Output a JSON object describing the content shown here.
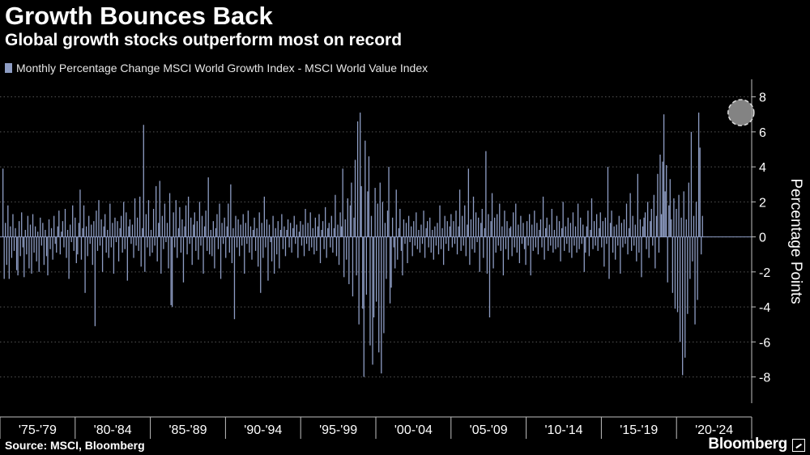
{
  "colors": {
    "background": "#000000",
    "bar": "#8e9dc4",
    "grid": "#555555",
    "axis": "#bfbfbf",
    "highlight": "#dddddd"
  },
  "chart_data": {
    "type": "bar",
    "title": "Growth Bounces Back",
    "subtitle": "Global growth stocks outperform most on record",
    "legend": "Monthly Percentage Change MSCI World Growth Index - MSCI World Value  Index",
    "ylabel": "Percentage Points",
    "xlabel": "",
    "ylim": [
      -9.5,
      9
    ],
    "yticks": [
      8,
      6,
      4,
      2,
      0,
      -2,
      -4,
      -6,
      -8
    ],
    "start_year": 1975,
    "xtick_labels": [
      "'75-'79",
      "'80-'84",
      "'85-'89",
      "'90-'94",
      "'95-'99",
      "'00-'04",
      "'05-'09",
      "'10-'14",
      "'15-'19",
      "'20-'24"
    ],
    "highlight": {
      "year": 2024,
      "month": 6,
      "value": 7.1
    },
    "series": [
      {
        "name": "Monthly Percentage Change MSCI World Growth Index - MSCI World Value  Index",
        "values": [
          3.9,
          -2.4,
          0.8,
          -1.6,
          1.8,
          -2.4,
          0.6,
          -1.2,
          1.3,
          -0.8,
          0.5,
          -1.9,
          -2.2,
          0.9,
          -1.1,
          1.4,
          -0.6,
          -2.3,
          0.4,
          -1.0,
          1.2,
          -1.8,
          0.7,
          -2.1,
          1.3,
          -0.9,
          0.6,
          -1.4,
          0.3,
          -2.0,
          1.1,
          -0.5,
          0.8,
          -1.6,
          0.4,
          -1.1,
          -2.2,
          1.0,
          -0.7,
          0.5,
          -1.3,
          1.2,
          -0.4,
          -0.9,
          0.6,
          1.5,
          -1.0,
          0.3,
          0.9,
          -0.6,
          1.6,
          -1.2,
          0.4,
          -2.4,
          0.7,
          -0.3,
          1.8,
          -0.8,
          1.1,
          -1.5,
          -1.0,
          0.8,
          2.7,
          -1.3,
          0.5,
          1.8,
          -3.2,
          0.6,
          -1.1,
          1.2,
          -0.4,
          0.7,
          -1.6,
          0.9,
          -5.1,
          1.5,
          -0.8,
          2.1,
          -0.5,
          1.0,
          -2.0,
          0.6,
          1.3,
          -0.9,
          0.4,
          -1.2,
          1.9,
          -0.6,
          0.8,
          -2.1,
          1.1,
          -0.3,
          0.9,
          -1.4,
          0.5,
          1.2,
          -0.9,
          2.0,
          -0.7,
          1.4,
          -2.5,
          0.6,
          1.0,
          -0.4,
          0.7,
          -1.2,
          2.2,
          -0.5,
          1.1,
          -0.8,
          2.3,
          -1.7,
          0.5,
          6.4,
          -2.0,
          1.3,
          -0.6,
          2.1,
          -1.1,
          0.4,
          -0.9,
          1.6,
          -0.5,
          2.9,
          -1.4,
          0.8,
          3.2,
          -2.1,
          1.2,
          -0.7,
          1.9,
          -0.3,
          0.8,
          -1.8,
          2.5,
          -3.9,
          -4.0,
          1.4,
          -0.6,
          2.1,
          -1.2,
          0.5,
          1.7,
          -0.9,
          1.0,
          -2.6,
          0.6,
          1.8,
          -1.0,
          2.3,
          -0.4,
          1.1,
          -1.6,
          0.7,
          1.4,
          -0.8,
          0.9,
          -1.3,
          2.0,
          -0.5,
          1.2,
          -2.1,
          0.6,
          1.5,
          -0.8,
          3.4,
          -1.0,
          0.4,
          -1.1,
          0.9,
          -1.8,
          0.5,
          1.3,
          -0.7,
          1.9,
          -2.4,
          0.8,
          -0.4,
          1.1,
          -1.2,
          0.6,
          1.9,
          -0.9,
          3.0,
          -1.5,
          0.5,
          -4.7,
          1.2,
          -0.6,
          1.0,
          -1.1,
          0.7,
          -0.5,
          1.3,
          -2.1,
          0.8,
          -0.4,
          1.5,
          -0.9,
          0.6,
          -1.3,
          0.4,
          1.1,
          -0.8,
          0.5,
          -1.7,
          1.4,
          -3.2,
          0.8,
          -1.2,
          2.3,
          -0.6,
          1.0,
          -2.5,
          0.7,
          -0.3,
          -1.4,
          1.2,
          -2.1,
          0.5,
          -1.0,
          0.9,
          -1.8,
          0.4,
          1.3,
          -0.7,
          0.6,
          -1.1,
          0.4,
          1.0,
          -0.6,
          0.8,
          -0.9,
          0.5,
          1.2,
          -0.4,
          0.7,
          -1.2,
          0.3,
          0.9,
          -0.5,
          0.7,
          -1.1,
          1.6,
          -0.4,
          0.8,
          -0.8,
          1.4,
          -0.6,
          0.5,
          -1.0,
          1.1,
          -0.8,
          0.6,
          1.3,
          -1.5,
          0.4,
          0.9,
          -0.7,
          1.7,
          -1.2,
          0.5,
          0.8,
          -0.6,
          1.2,
          -0.9,
          0.5,
          2.4,
          -1.1,
          0.7,
          -1.6,
          1.4,
          0.6,
          3.9,
          -2.3,
          1.0,
          -1.3,
          2.2,
          -2.7,
          1.8,
          3.1,
          -3.4,
          1.1,
          4.4,
          -2.2,
          6.6,
          -5.0,
          7.1,
          2.9,
          -4.1,
          -8.0,
          5.5,
          -3.3,
          2.6,
          4.6,
          -6.2,
          1.2,
          -7.3,
          -4.6,
          2.8,
          -3.7,
          1.9,
          -6.6,
          3.1,
          -7.8,
          2.0,
          -5.5,
          0.8,
          -2.4,
          1.5,
          4.0,
          -3.8,
          -2.9,
          1.1,
          -0.6,
          -1.8,
          2.7,
          -1.3,
          0.5,
          1.6,
          -0.8,
          -2.2,
          1.0,
          -0.4,
          0.8,
          -1.5,
          1.2,
          -0.3,
          0.6,
          -1.1,
          0.9,
          -0.5,
          1.4,
          -0.7,
          0.4,
          -0.9,
          0.7,
          -0.4,
          1.5,
          -1.2,
          0.5,
          0.9,
          -0.6,
          1.1,
          -0.9,
          0.4,
          -1.3,
          0.6,
          -0.5,
          0.8,
          -1.0,
          1.8,
          -0.7,
          0.5,
          -1.6,
          1.2,
          -0.4,
          0.9,
          -0.8,
          0.6,
          1.3,
          -0.6,
          0.9,
          -0.4,
          1.5,
          -1.0,
          0.6,
          2.7,
          -0.8,
          1.2,
          -0.5,
          1.8,
          -1.1,
          0.7,
          3.9,
          -1.6,
          1.0,
          -0.7,
          2.3,
          -0.9,
          1.4,
          -0.3,
          1.1,
          -2.0,
          0.8,
          1.6,
          -1.2,
          0.5,
          4.9,
          -2.1,
          1.3,
          -4.6,
          0.9,
          2.5,
          -1.8,
          1.1,
          -0.9,
          1.3,
          -0.5,
          1.9,
          -0.8,
          0.6,
          -2.2,
          1.5,
          -0.7,
          0.9,
          -1.3,
          0.5,
          0.6,
          -1.1,
          1.4,
          -0.6,
          1.9,
          -0.9,
          0.7,
          -1.5,
          1.2,
          -0.4,
          0.8,
          -0.7,
          -1.6,
          0.9,
          -0.5,
          1.3,
          -2.2,
          0.7,
          -0.8,
          1.5,
          -0.6,
          0.8,
          -1.0,
          0.4,
          1.0,
          -0.6,
          2.3,
          -1.3,
          0.5,
          1.1,
          -0.8,
          0.7,
          -0.5,
          1.6,
          -0.9,
          0.4,
          -0.7,
          1.2,
          -0.6,
          0.9,
          -1.4,
          0.5,
          2.0,
          -0.8,
          0.6,
          -0.4,
          1.1,
          -0.9,
          0.8,
          -1.2,
          1.4,
          -0.5,
          0.6,
          -0.9,
          1.9,
          -0.7,
          1.1,
          -0.4,
          0.7,
          -2.0,
          -0.9,
          0.6,
          1.5,
          -1.1,
          0.4,
          2.2,
          -0.7,
          0.9,
          -0.5,
          1.3,
          -0.8,
          0.5,
          1.4,
          -0.6,
          0.9,
          -1.7,
          1.1,
          -0.4,
          4.0,
          -2.4,
          0.8,
          1.5,
          -0.9,
          0.6,
          -1.3,
          0.7,
          -0.5,
          1.2,
          -2.1,
          0.8,
          -0.6,
          1.0,
          -0.4,
          1.9,
          -1.0,
          0.5,
          2.5,
          -0.8,
          1.2,
          -0.5,
          0.7,
          -1.4,
          3.6,
          -0.9,
          1.0,
          -2.3,
          0.6,
          1.1,
          1.4,
          -0.7,
          2.0,
          -1.2,
          0.9,
          1.6,
          -0.5,
          2.4,
          -1.8,
          1.2,
          3.6,
          -0.9,
          4.7,
          1.3,
          4.3,
          7.0,
          2.6,
          4.1,
          -2.6,
          1.8,
          3.3,
          1.0,
          -3.2,
          2.2,
          -4.1,
          1.6,
          -4.3,
          2.4,
          -6.0,
          1.1,
          -7.9,
          2.6,
          -6.9,
          1.0,
          -4.4,
          3.1,
          -2.4,
          6.0,
          -1.4,
          1.2,
          -5.0,
          2.0,
          -3.6,
          7.1,
          5.1,
          -1.0,
          1.2
        ]
      }
    ]
  }
}
